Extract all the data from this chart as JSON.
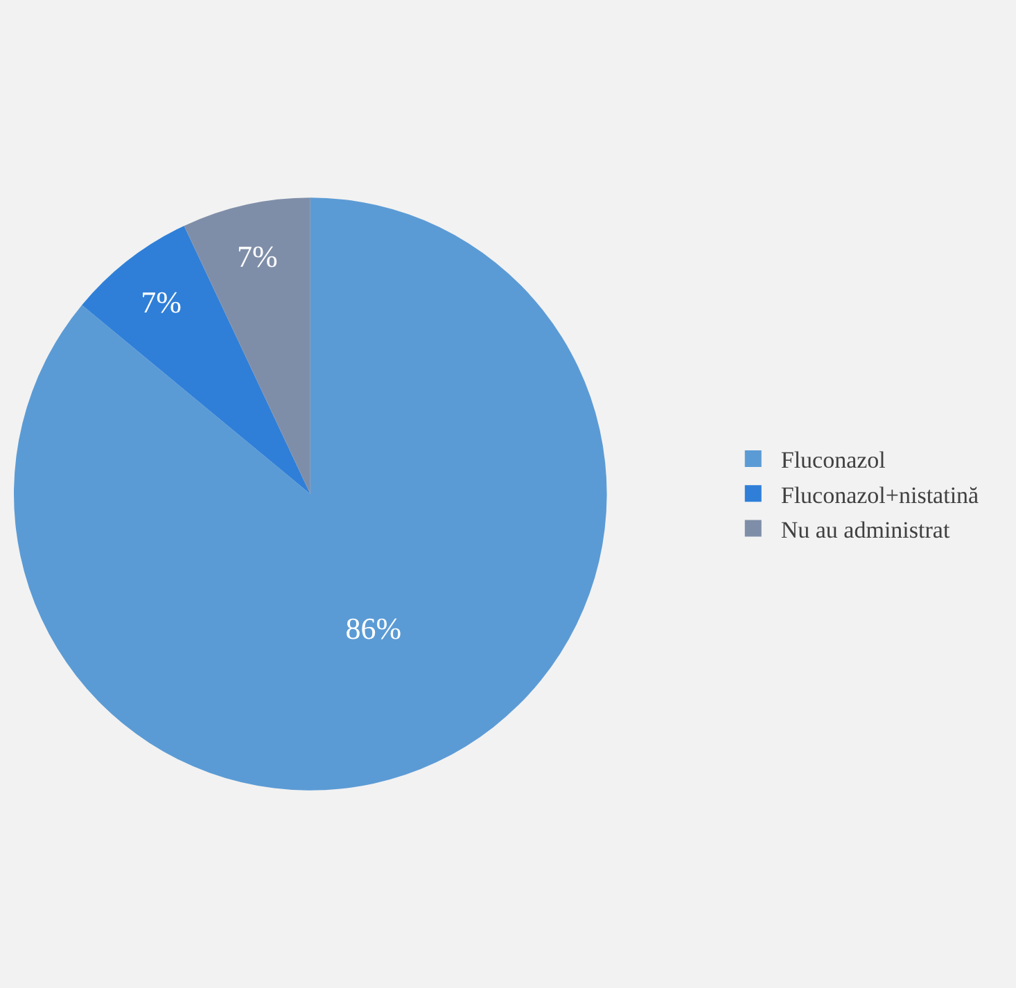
{
  "chart_data": {
    "type": "pie",
    "categories": [
      "Fluconazol",
      "Fluconazol+nistatină",
      "Nu au administrat"
    ],
    "values": [
      86,
      7,
      7
    ],
    "colors": [
      "#5b9bd5",
      "#2f7fd8",
      "#7f8ea8"
    ],
    "value_labels": [
      "86%",
      "7%",
      "7%"
    ],
    "legend": "right"
  }
}
